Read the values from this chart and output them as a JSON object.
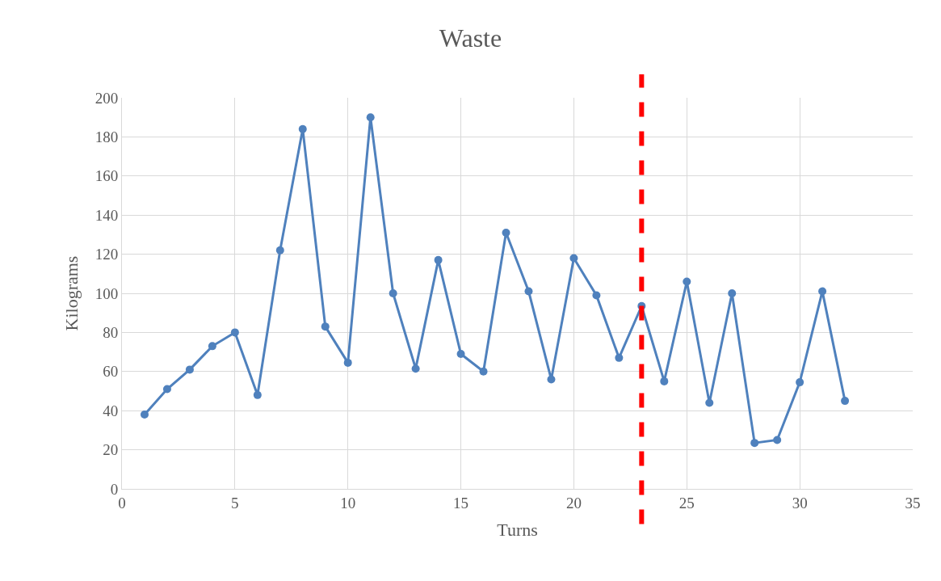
{
  "chart_data": {
    "type": "line",
    "title": "Waste",
    "xlabel": "Turns",
    "ylabel": "Kilograms",
    "x": [
      1,
      2,
      3,
      4,
      5,
      6,
      7,
      8,
      9,
      10,
      11,
      12,
      13,
      14,
      15,
      16,
      17,
      18,
      19,
      20,
      21,
      22,
      23,
      24,
      25,
      26,
      27,
      28,
      29,
      30,
      31,
      32
    ],
    "series": [
      {
        "color": "#4f81bd",
        "values": [
          38,
          51,
          61,
          73,
          80,
          48,
          122,
          184,
          83,
          64.5,
          190,
          100,
          61.5,
          117,
          69,
          60,
          131,
          101,
          56,
          118,
          99,
          67,
          93.5,
          55,
          106,
          44,
          100,
          23.5,
          25,
          54.5,
          101,
          45
        ]
      }
    ],
    "xlim": [
      0,
      35
    ],
    "xticks": [
      0,
      5,
      10,
      15,
      20,
      25,
      30,
      35
    ],
    "ylim": [
      0,
      200
    ],
    "yticks": [
      0,
      20,
      40,
      60,
      80,
      100,
      120,
      140,
      160,
      180,
      200
    ],
    "grid": true,
    "marker": "circle",
    "line_style": "solid",
    "legend": false,
    "ref_lines": [
      {
        "axis": "x",
        "value": 23,
        "color": "#ff0000",
        "line_style": "dashed"
      }
    ]
  }
}
